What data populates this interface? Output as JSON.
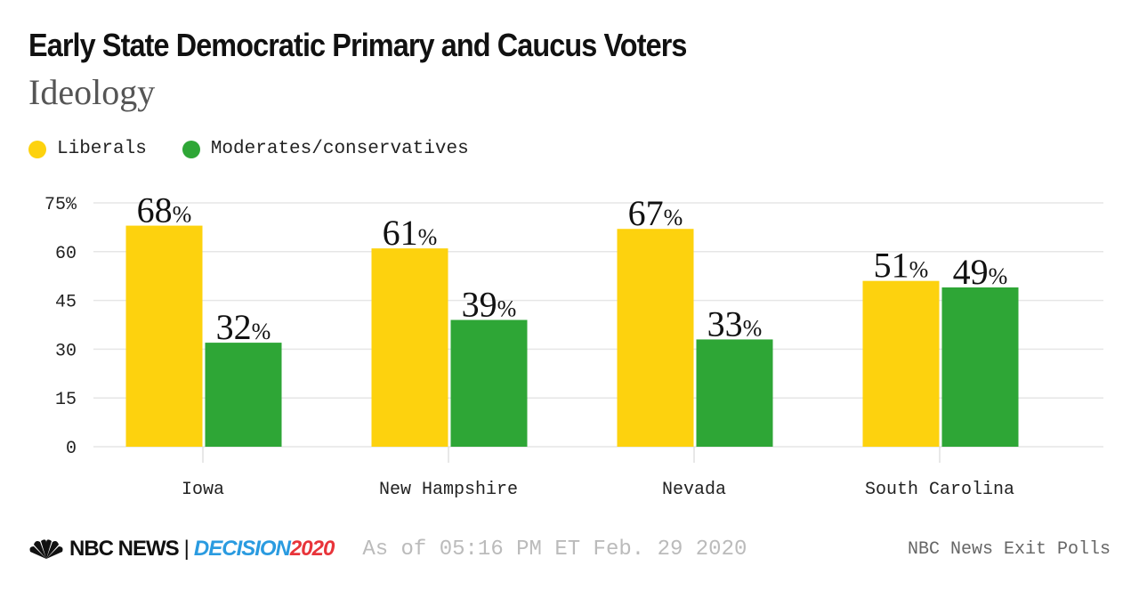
{
  "chart_data": {
    "type": "bar",
    "title": "Early State Democratic Primary and Caucus Voters",
    "subtitle": "Ideology",
    "categories": [
      "Iowa",
      "New Hampshire",
      "Nevada",
      "South Carolina"
    ],
    "series": [
      {
        "name": "Liberals",
        "color": "#fdd20e",
        "values": [
          68,
          61,
          67,
          51
        ]
      },
      {
        "name": "Moderates/conservatives",
        "color": "#2ea636",
        "values": [
          32,
          39,
          33,
          49
        ]
      }
    ],
    "yticks": [
      "0",
      "15",
      "30",
      "45",
      "60",
      "75%"
    ],
    "ytick_values": [
      0,
      15,
      30,
      45,
      60,
      75
    ],
    "ylim": [
      0,
      75
    ],
    "grid": true,
    "legend": "top-left",
    "value_suffix": "%"
  },
  "footer": {
    "brand": "NBC NEWS",
    "separator": "|",
    "decision": "DECISION",
    "year": "2020",
    "as_of": "As of 05:16 PM ET Feb. 29 2020",
    "source": "NBC News Exit Polls"
  }
}
